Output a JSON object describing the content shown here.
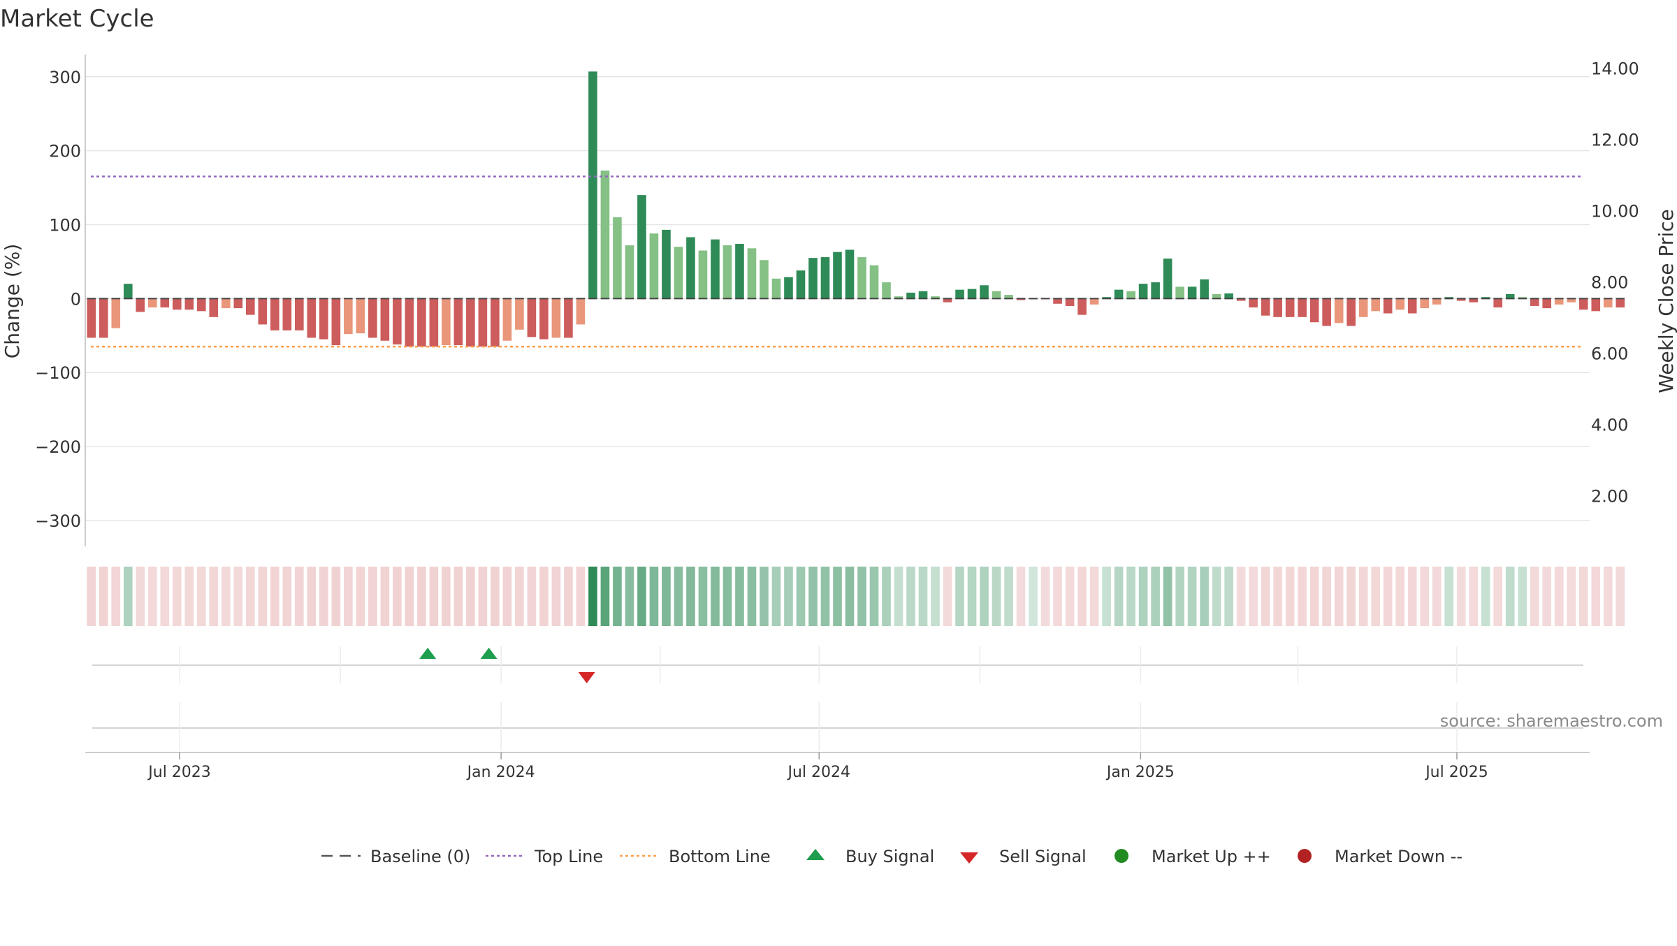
{
  "chart_data": {
    "type": "bar",
    "title": "Market Cycle",
    "ylabel_left": "Change (%)",
    "ylabel_right": "Weekly Close Price",
    "ylim_left": [
      -335,
      330
    ],
    "ylim_right": [
      0.6,
      14.4
    ],
    "yticks_left": [
      300,
      200,
      100,
      0,
      -100,
      -200,
      -300
    ],
    "yticks_left_labels": [
      "300",
      "200",
      "100",
      "0",
      "−100",
      "−200",
      "−300"
    ],
    "yticks_right": [
      14,
      12,
      10,
      8,
      6,
      4,
      2
    ],
    "yticks_right_labels": [
      "14.00",
      "12.00",
      "10.00",
      "8.00",
      "6.00",
      "4.00",
      "2.00"
    ],
    "x_range": [
      "2023-05-08",
      "2025-09-15"
    ],
    "x_ticks": [
      {
        "date": "2023-07-01",
        "label": "Jul 2023"
      },
      {
        "date": "2024-01-01",
        "label": "Jan 2024"
      },
      {
        "date": "2024-07-01",
        "label": "Jul 2024"
      },
      {
        "date": "2025-01-01",
        "label": "Jan 2025"
      },
      {
        "date": "2025-07-01",
        "label": "Jul 2025"
      }
    ],
    "minor_grid_dates": [
      "2023-07-01",
      "2023-10-01",
      "2024-01-01",
      "2024-04-01",
      "2024-07-01",
      "2024-10-01",
      "2025-01-01",
      "2025-04-01",
      "2025-07-01"
    ],
    "start_date": "2023-05-08",
    "values": [
      -53,
      -53,
      -40,
      20,
      -18,
      -12,
      -12,
      -15,
      -15,
      -17,
      -25,
      -13,
      -13,
      -22,
      -35,
      -43,
      -43,
      -43,
      -53,
      -55,
      -63,
      -48,
      -47,
      -53,
      -57,
      -62,
      -65,
      -65,
      -65,
      -63,
      -63,
      -65,
      -65,
      -65,
      -57,
      -42,
      -52,
      -55,
      -53,
      -53,
      -35,
      307,
      173,
      110,
      72,
      140,
      88,
      93,
      70,
      83,
      65,
      80,
      72,
      74,
      68,
      52,
      27,
      29,
      38,
      55,
      56,
      63,
      66,
      56,
      45,
      22,
      3,
      8,
      10,
      3,
      -5,
      12,
      13,
      18,
      10,
      5,
      -2,
      0,
      -1,
      -7,
      -10,
      -22,
      -8,
      2,
      12,
      10,
      20,
      22,
      54,
      16,
      16,
      26,
      6,
      7,
      -3,
      -12,
      -23,
      -25,
      -25,
      -25,
      -32,
      -37,
      -33,
      -37,
      -25,
      -17,
      -20,
      -15,
      -20,
      -13,
      -8,
      2,
      -3,
      -5,
      2,
      -12,
      6,
      2,
      -10,
      -13,
      -8,
      -5,
      -15,
      -17,
      -12,
      -12
    ],
    "baseline": {
      "value": 0,
      "label": "Baseline (0)",
      "color": "#555555"
    },
    "top_line": {
      "value": 165,
      "label": "Top Line",
      "color": "#9467bd"
    },
    "bottom_line": {
      "value": -65,
      "label": "Bottom Line",
      "color": "#ff9e4a"
    },
    "buy_signals": [
      "2023-11-20",
      "2023-12-25"
    ],
    "sell_signals": [
      "2024-02-19"
    ],
    "colors": {
      "up_dark": "#2e8b57",
      "up_light": "#85c085",
      "down_dark": "#cd5c5c",
      "down_light": "#e9967a",
      "buy": "#1e9e4e",
      "sell": "#d62728",
      "market_up": "#228b22",
      "market_down": "#b22222",
      "grid": "#e6e6e6",
      "axis": "#cccccc"
    },
    "grid": true,
    "legend": {
      "placement": "bottom-center",
      "items": [
        {
          "label": "Baseline (0)",
          "symbol": "dashed",
          "color": "#555555"
        },
        {
          "label": "Top Line",
          "symbol": "dotted",
          "color": "#9467bd"
        },
        {
          "label": "Bottom Line",
          "symbol": "dotted",
          "color": "#ff9e4a"
        },
        {
          "label": "Buy Signal",
          "symbol": "triangle-up",
          "color": "#1e9e4e"
        },
        {
          "label": "Sell Signal",
          "symbol": "triangle-down",
          "color": "#d62728"
        },
        {
          "label": "Market Up ++",
          "symbol": "circle",
          "color": "#228b22"
        },
        {
          "label": "Market Down --",
          "symbol": "circle",
          "color": "#b22222"
        }
      ]
    },
    "source": "source: sharemaestro.com"
  }
}
